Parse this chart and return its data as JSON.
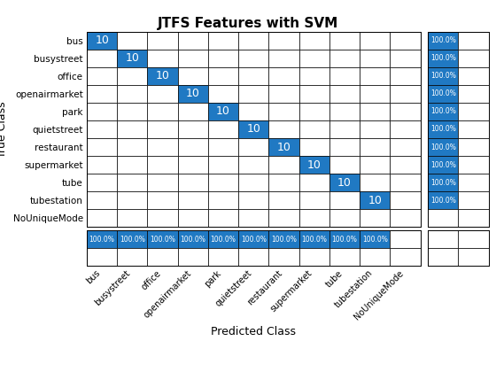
{
  "title": "JTFS Features with SVM",
  "classes": [
    "bus",
    "busystreet",
    "office",
    "openairmarket",
    "park",
    "quietstreet",
    "restaurant",
    "supermarket",
    "tube",
    "tubestation",
    "NoUniqueMode"
  ],
  "n_classes": 11,
  "diag_value": 10,
  "diag_color": "#2079c3",
  "zero_color": "#ffffff",
  "cell_text_color": "#ffffff",
  "cell_fontsize": 9,
  "xlabel": "Predicted Class",
  "ylabel": "True Class",
  "row_label": "100.0%",
  "col_label": "100.0%",
  "n_real_classes": 10,
  "grid_color": "#000000",
  "title_fontsize": 11
}
